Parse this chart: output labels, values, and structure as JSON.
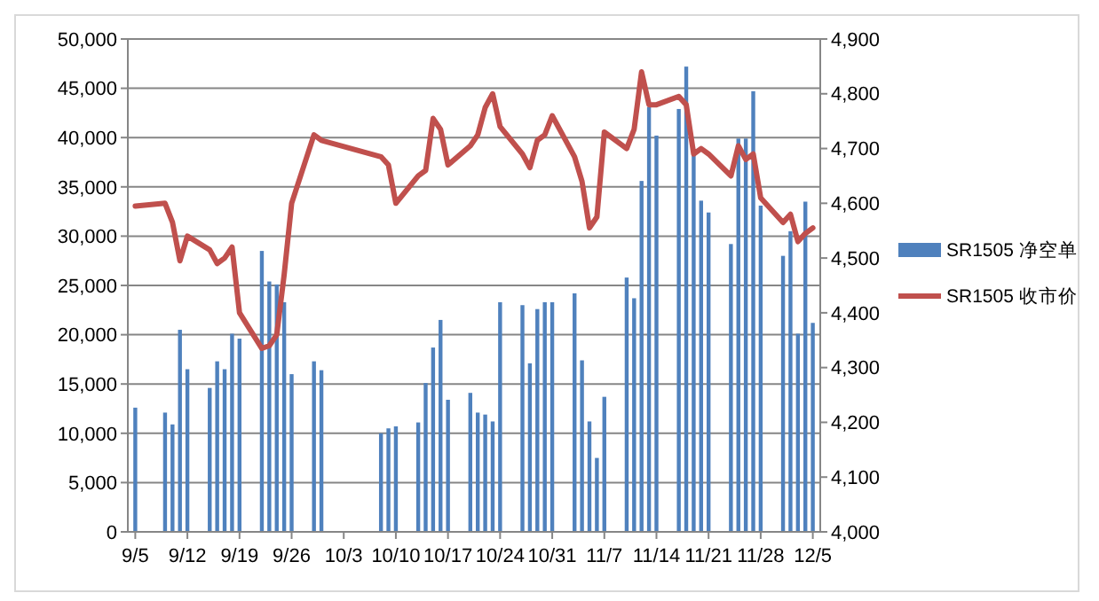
{
  "chart_data": {
    "type": "bar",
    "x": [
      "--09-05",
      "--09-09",
      "--09-10",
      "--09-11",
      "--09-12",
      "--09-15",
      "--09-16",
      "--09-17",
      "--09-18",
      "--09-19",
      "--09-22",
      "--09-23",
      "--09-24",
      "--09-25",
      "--09-26",
      "--09-29",
      "--09-30",
      "--10-08",
      "--10-09",
      "--10-10",
      "--10-13",
      "--10-14",
      "--10-15",
      "--10-16",
      "--10-17",
      "--10-20",
      "--10-21",
      "--10-22",
      "--10-23",
      "--10-24",
      "--10-27",
      "--10-28",
      "--10-29",
      "--10-30",
      "--10-31",
      "--11-03",
      "--11-04",
      "--11-05",
      "--11-06",
      "--11-07",
      "--11-10",
      "--11-11",
      "--11-12",
      "--11-13",
      "--11-14",
      "--11-17",
      "--11-18",
      "--11-19",
      "--11-20",
      "--11-21",
      "--11-24",
      "--11-25",
      "--11-26",
      "--11-27",
      "--11-28",
      "--12-01",
      "--12-02",
      "--12-03",
      "--12-04",
      "--12-05"
    ],
    "series": [
      {
        "name": "SR1505 净空单",
        "color": "#4f81bd",
        "values": [
          12600,
          12100,
          10900,
          20500,
          16500,
          14600,
          17300,
          16500,
          20100,
          19600,
          28500,
          25400,
          25100,
          23300,
          16000,
          17300,
          16400,
          10000,
          10500,
          10700,
          11100,
          15100,
          18700,
          21500,
          13400,
          14100,
          12100,
          11900,
          11200,
          23300,
          23000,
          17100,
          22600,
          23300,
          23300,
          24200,
          17400,
          11200,
          7500,
          13700,
          25800,
          23700,
          35600,
          43100,
          40200,
          42900,
          47200,
          38300,
          33600,
          32400,
          29200,
          39900,
          39900,
          44700,
          33100,
          28000,
          30500,
          20100,
          33500,
          21200
        ]
      },
      {
        "name": "SR1505 收市价",
        "type": "line",
        "axis": "y2",
        "color": "#c0504d",
        "values": [
          4595,
          4600,
          4565,
          4495,
          4540,
          4515,
          4490,
          4500,
          4520,
          4400,
          4335,
          4340,
          4360,
          4470,
          4600,
          4725,
          4715,
          4685,
          4670,
          4600,
          4650,
          4660,
          4755,
          4735,
          4670,
          4705,
          4725,
          4775,
          4800,
          4740,
          4690,
          4665,
          4715,
          4725,
          4760,
          4685,
          4640,
          4555,
          4575,
          4730,
          4700,
          4735,
          4840,
          4780,
          4780,
          4795,
          4780,
          4690,
          4700,
          4690,
          4650,
          4705,
          4680,
          4690,
          4610,
          4565,
          4580,
          4530,
          4545,
          4555
        ]
      }
    ],
    "xlim": [
      "--09-04",
      "--12-06"
    ],
    "xticks": [
      {
        "value": "--09-05",
        "label": "9/5"
      },
      {
        "value": "--09-12",
        "label": "9/12"
      },
      {
        "value": "--09-19",
        "label": "9/19"
      },
      {
        "value": "--09-26",
        "label": "9/26"
      },
      {
        "value": "--10-03",
        "label": "10/3"
      },
      {
        "value": "--10-10",
        "label": "10/10"
      },
      {
        "value": "--10-17",
        "label": "10/17"
      },
      {
        "value": "--10-24",
        "label": "10/24"
      },
      {
        "value": "--10-31",
        "label": "10/31"
      },
      {
        "value": "--11-07",
        "label": "11/7"
      },
      {
        "value": "--11-14",
        "label": "11/14"
      },
      {
        "value": "--11-21",
        "label": "11/21"
      },
      {
        "value": "--11-28",
        "label": "11/28"
      },
      {
        "value": "--12-05",
        "label": "12/5"
      }
    ],
    "ylim": [
      0,
      50000
    ],
    "yticks": [
      0,
      {
        "value": 5000,
        "label": "5,000"
      },
      {
        "value": 10000,
        "label": "10,000"
      },
      {
        "value": 15000,
        "label": "15,000"
      },
      {
        "value": 20000,
        "label": "20,000"
      },
      {
        "value": 25000,
        "label": "25,000"
      },
      {
        "value": 30000,
        "label": "30,000"
      },
      {
        "value": 35000,
        "label": "35,000"
      },
      {
        "value": 40000,
        "label": "40,000"
      },
      {
        "value": 45000,
        "label": "45,000"
      },
      {
        "value": 50000,
        "label": "50,000"
      }
    ],
    "y2lim": [
      4000,
      4900
    ],
    "y2ticks": [
      {
        "value": 4000,
        "label": "4,000"
      },
      {
        "value": 4100,
        "label": "4,100"
      },
      {
        "value": 4200,
        "label": "4,200"
      },
      {
        "value": 4300,
        "label": "4,300"
      },
      {
        "value": 4400,
        "label": "4,400"
      },
      {
        "value": 4500,
        "label": "4,500"
      },
      {
        "value": 4600,
        "label": "4,600"
      },
      {
        "value": 4700,
        "label": "4,700"
      },
      {
        "value": 4800,
        "label": "4,800"
      },
      {
        "value": 4900,
        "label": "4,900"
      }
    ],
    "grid": "y",
    "legend": "right"
  }
}
